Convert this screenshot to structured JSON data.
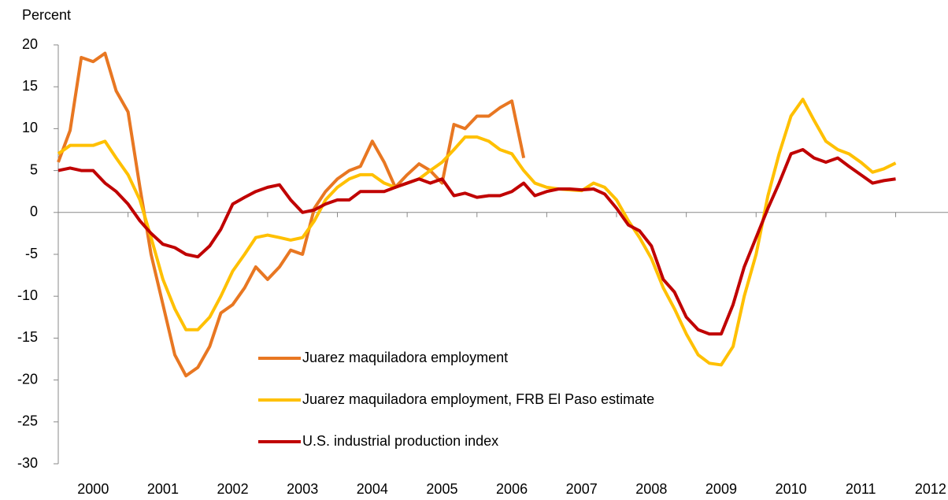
{
  "chart_data": {
    "type": "line",
    "y_label": "Percent",
    "x": [
      2000,
      2000.17,
      2000.33,
      2000.5,
      2000.67,
      2000.83,
      2001,
      2001.17,
      2001.33,
      2001.5,
      2001.67,
      2001.83,
      2002,
      2002.17,
      2002.33,
      2002.5,
      2002.67,
      2002.83,
      2003,
      2003.17,
      2003.33,
      2003.5,
      2003.67,
      2003.83,
      2004,
      2004.17,
      2004.33,
      2004.5,
      2004.67,
      2004.83,
      2005,
      2005.17,
      2005.33,
      2005.5,
      2005.67,
      2005.83,
      2006,
      2006.17,
      2006.33,
      2006.5,
      2006.67,
      2006.83,
      2007,
      2007.17,
      2007.33,
      2007.5,
      2007.67,
      2007.83,
      2008,
      2008.17,
      2008.33,
      2008.5,
      2008.67,
      2008.83,
      2009,
      2009.17,
      2009.33,
      2009.5,
      2009.67,
      2009.83,
      2010,
      2010.17,
      2010.33,
      2010.5,
      2010.67,
      2010.83,
      2011,
      2011.17,
      2011.33,
      2011.5,
      2011.67,
      2011.83,
      2012
    ],
    "series": [
      {
        "name": "Juarez maquiladora employment",
        "color": "#E87722",
        "values": [
          6,
          9.8,
          18.5,
          18,
          19,
          14.5,
          12,
          3,
          -5,
          -11,
          -17,
          -19.5,
          -18.5,
          -16,
          -12,
          -11,
          -9,
          -6.5,
          -8,
          -6.5,
          -4.5,
          -5,
          0.5,
          2.5,
          4,
          5,
          5.5,
          8.5,
          6,
          3,
          4.5,
          5.8,
          5,
          3.5,
          10.5,
          10,
          11.5,
          11.5,
          12.5,
          13.3,
          6.5,
          null,
          null,
          null,
          null,
          null,
          null,
          null,
          null,
          null,
          null,
          null,
          null,
          null,
          null,
          null,
          null,
          null,
          null,
          null,
          null,
          null,
          null,
          null,
          null,
          null,
          null,
          null,
          null,
          null,
          null,
          null,
          null
        ]
      },
      {
        "name": "Juarez maquiladora employment, FRB El Paso estimate",
        "color": "#FFC000",
        "values": [
          7,
          8,
          8,
          8,
          8.5,
          6.5,
          4.5,
          1.5,
          -3,
          -8,
          -11.5,
          -14,
          -14,
          -12.5,
          -10,
          -7,
          -5,
          -3,
          -2.7,
          -3,
          -3.3,
          -3,
          -1,
          1.5,
          3,
          4,
          4.5,
          4.5,
          3.5,
          3,
          3.5,
          4,
          5,
          6,
          7.5,
          9,
          9,
          8.5,
          7.5,
          7,
          5,
          3.5,
          3,
          2.8,
          2.7,
          2.6,
          3.5,
          3,
          1.5,
          -1,
          -3,
          -5.5,
          -9,
          -11.5,
          -14.5,
          -17,
          -18,
          -18.2,
          -16,
          -10,
          -5,
          2,
          7,
          11.5,
          13.5,
          11,
          8.5,
          7.5,
          7,
          6,
          4.8,
          5.2,
          5.9
        ]
      },
      {
        "name": "U.S. industrial production index",
        "color": "#C00000",
        "values": [
          5,
          5.3,
          5,
          5,
          3.5,
          2.5,
          1,
          -1,
          -2.5,
          -3.8,
          -4.2,
          -5,
          -5.3,
          -4,
          -2,
          1,
          1.8,
          2.5,
          3,
          3.3,
          1.5,
          0,
          0.3,
          1,
          1.5,
          1.5,
          2.5,
          2.5,
          2.5,
          3,
          3.5,
          4,
          3.5,
          4,
          2,
          2.3,
          1.8,
          2,
          2,
          2.5,
          3.5,
          2,
          2.5,
          2.8,
          2.8,
          2.7,
          2.8,
          2.2,
          0.5,
          -1.5,
          -2.2,
          -4,
          -8,
          -9.5,
          -12.5,
          -14,
          -14.5,
          -14.5,
          -11,
          -6.5,
          -3,
          0.5,
          3.5,
          7,
          7.5,
          6.5,
          6,
          6.5,
          5.5,
          4.5,
          3.5,
          3.8,
          4
        ]
      }
    ],
    "xlim": [
      2000,
      2012.75
    ],
    "xticks": [
      2000,
      2001,
      2002,
      2003,
      2004,
      2005,
      2006,
      2007,
      2008,
      2009,
      2010,
      2011,
      2012
    ],
    "ylim": [
      -30,
      20
    ],
    "yticks": [
      -30,
      -25,
      -20,
      -15,
      -10,
      -5,
      0,
      5,
      10,
      15,
      20
    ],
    "legend": "lower center"
  }
}
